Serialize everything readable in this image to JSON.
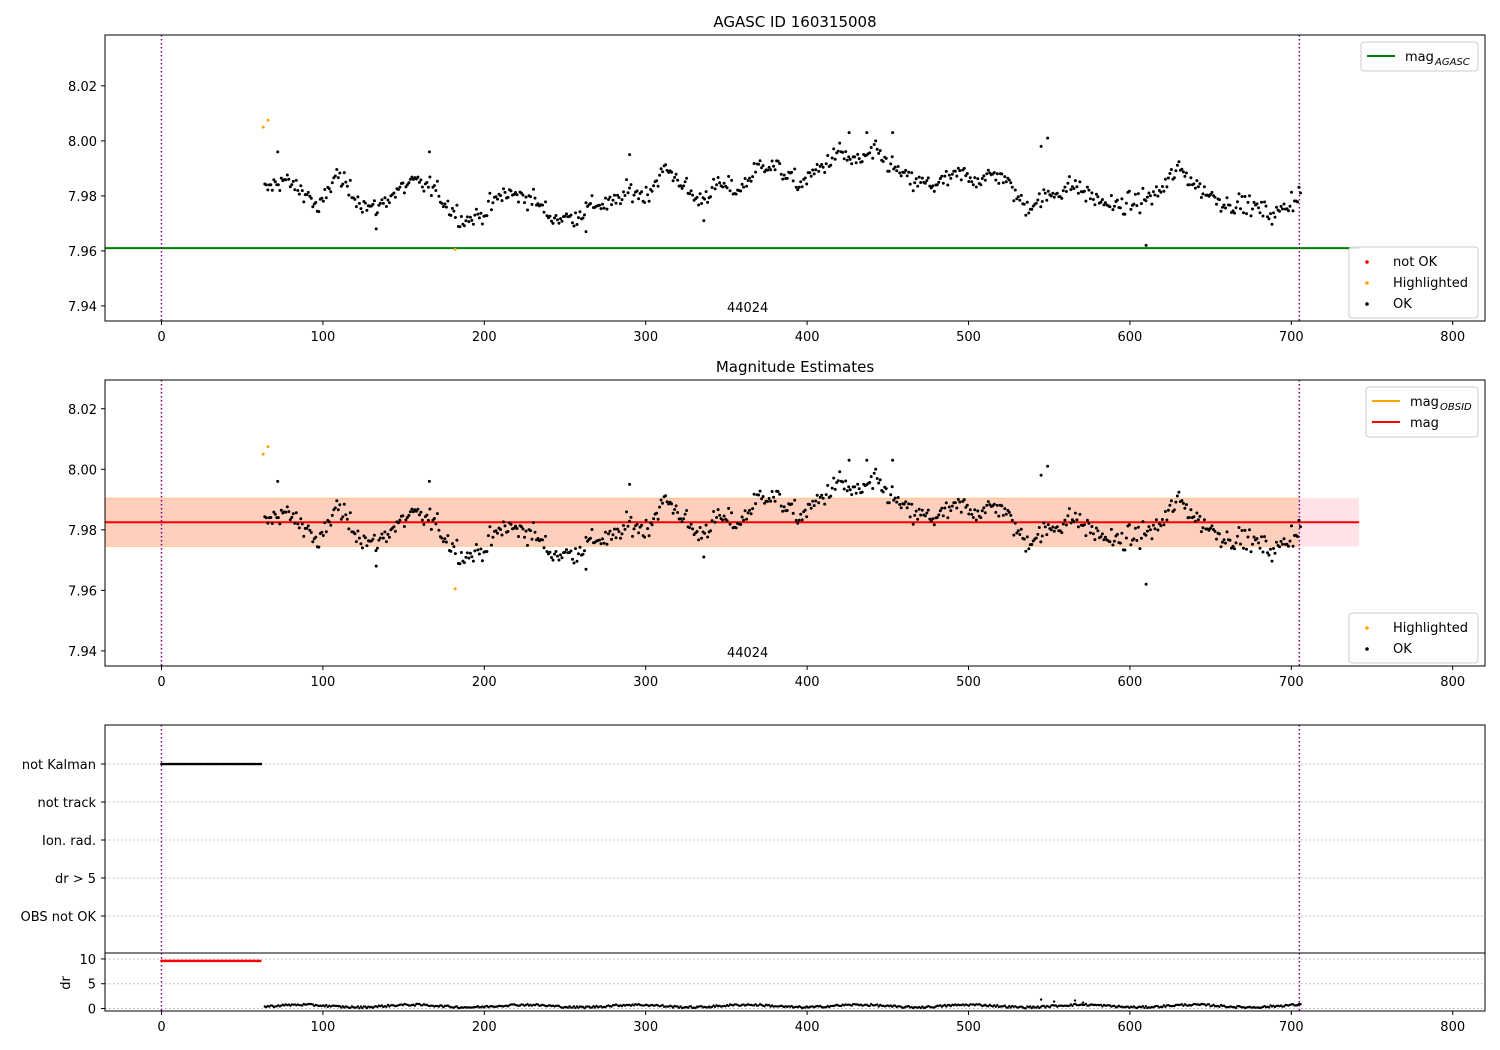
{
  "figure": {
    "annotation_text": "44024"
  },
  "chart_data": [
    {
      "type": "scatter",
      "title": "AGASC ID 160315008",
      "xlabel": "",
      "ylabel": "",
      "xlim": [
        -35,
        820
      ],
      "ylim": [
        7.9345,
        8.0385
      ],
      "x_ticks": [
        0,
        100,
        200,
        300,
        400,
        500,
        600,
        700,
        800
      ],
      "y_ticks": [
        7.94,
        7.96,
        7.98,
        8.0,
        8.02
      ],
      "y_tick_labels": [
        "7.94",
        "7.96",
        "7.98",
        "8.00",
        "8.02"
      ],
      "vlines": [
        0,
        705
      ],
      "hlines": [
        {
          "name": "mag_AGASC",
          "value": 7.961,
          "x_range": [
            -35,
            742
          ],
          "color": "#008000"
        }
      ],
      "annotation": {
        "text": "44024",
        "x": 352,
        "y": 7.9345
      },
      "legend_upper": {
        "placement": "upper right",
        "entries": [
          {
            "label": "mag",
            "sub": "AGASC",
            "color": "#008000",
            "marker": "line"
          }
        ]
      },
      "legend_lower": {
        "placement": "lower right",
        "entries": [
          {
            "label": "not OK",
            "color": "#ff0000",
            "marker": "dot"
          },
          {
            "label": "Highlighted",
            "color": "#ffa500",
            "marker": "dot"
          },
          {
            "label": "OK",
            "color": "#000000",
            "marker": "dot"
          }
        ]
      },
      "series": [
        {
          "name": "Highlighted",
          "color": "#ffa500",
          "points": [
            [
              63,
              8.005
            ],
            [
              66,
              8.0075
            ],
            [
              182,
              7.9605
            ]
          ]
        }
      ],
      "ok_series": {
        "name": "OK",
        "color": "#000000",
        "x_range": [
          64,
          706
        ],
        "step": 0.93,
        "anchors": [
          [
            64,
            7.982
          ],
          [
            75,
            7.986
          ],
          [
            92,
            7.98
          ],
          [
            97,
            7.974
          ],
          [
            108,
            7.988
          ],
          [
            115,
            7.983
          ],
          [
            125,
            7.977
          ],
          [
            132,
            7.975
          ],
          [
            142,
            7.98
          ],
          [
            155,
            7.985
          ],
          [
            168,
            7.983
          ],
          [
            178,
            7.976
          ],
          [
            188,
            7.971
          ],
          [
            198,
            7.973
          ],
          [
            212,
            7.981
          ],
          [
            230,
            7.979
          ],
          [
            242,
            7.972
          ],
          [
            255,
            7.972
          ],
          [
            268,
            7.977
          ],
          [
            280,
            7.977
          ],
          [
            290,
            7.982
          ],
          [
            300,
            7.98
          ],
          [
            312,
            7.99
          ],
          [
            322,
            7.985
          ],
          [
            332,
            7.978
          ],
          [
            345,
            7.984
          ],
          [
            358,
            7.982
          ],
          [
            372,
            7.992
          ],
          [
            382,
            7.99
          ],
          [
            395,
            7.984
          ],
          [
            408,
            7.99
          ],
          [
            420,
            7.996
          ],
          [
            430,
            7.992
          ],
          [
            442,
            7.996
          ],
          [
            452,
            7.991
          ],
          [
            465,
            7.985
          ],
          [
            480,
            7.984
          ],
          [
            495,
            7.988
          ],
          [
            505,
            7.986
          ],
          [
            520,
            7.988
          ],
          [
            535,
            7.976
          ],
          [
            550,
            7.98
          ],
          [
            565,
            7.984
          ],
          [
            578,
            7.979
          ],
          [
            592,
            7.976
          ],
          [
            605,
            7.978
          ],
          [
            618,
            7.981
          ],
          [
            630,
            7.99
          ],
          [
            645,
            7.982
          ],
          [
            660,
            7.977
          ],
          [
            672,
            7.977
          ],
          [
            690,
            7.973
          ],
          [
            706,
            7.981
          ]
        ],
        "noise": 0.0035,
        "outliers": [
          [
            72,
            7.996
          ],
          [
            166,
            7.996
          ],
          [
            290,
            7.995
          ],
          [
            426,
            8.003
          ],
          [
            437,
            8.003
          ],
          [
            453,
            8.003
          ],
          [
            545,
            7.998
          ],
          [
            549,
            8.001
          ],
          [
            610,
            7.962
          ],
          [
            133,
            7.968
          ],
          [
            263,
            7.967
          ],
          [
            336,
            7.971
          ]
        ]
      },
      "dr_series": null
    },
    {
      "type": "scatter",
      "title": "Magnitude Estimates",
      "xlabel": "",
      "ylabel": "",
      "xlim": [
        -35,
        820
      ],
      "ylim": [
        7.935,
        8.0295
      ],
      "x_ticks": [
        0,
        100,
        200,
        300,
        400,
        500,
        600,
        700,
        800
      ],
      "y_ticks": [
        7.94,
        7.96,
        7.98,
        8.0,
        8.02
      ],
      "y_tick_labels": [
        "7.94",
        "7.96",
        "7.98",
        "8.00",
        "8.02"
      ],
      "vlines": [
        0,
        705
      ],
      "hlines": [
        {
          "name": "mag",
          "value": 7.9825,
          "x_range": [
            -35,
            742
          ],
          "color": "#ff0000"
        }
      ],
      "bands": [
        {
          "name": "mag band",
          "low": 7.9745,
          "high": 7.9905,
          "x_range": [
            -35,
            742
          ],
          "color": "#ff8c69",
          "opacity": 0.28
        },
        {
          "name": "mag_OBSID band",
          "low": 7.9745,
          "high": 7.9905,
          "x_range": [
            -35,
            742
          ],
          "color": "#ffb6c1",
          "opacity": 0.35
        }
      ],
      "annotation": {
        "text": "44024",
        "x": 352,
        "y": 7.935
      },
      "legend_upper": {
        "placement": "upper right",
        "entries": [
          {
            "label": "mag",
            "sub": "OBSID",
            "color": "#ffa500",
            "marker": "line"
          },
          {
            "label": "mag",
            "sub": "",
            "color": "#ff0000",
            "marker": "line"
          }
        ]
      },
      "legend_lower": {
        "placement": "lower right",
        "entries": [
          {
            "label": "Highlighted",
            "color": "#ffa500",
            "marker": "dot"
          },
          {
            "label": "OK",
            "color": "#000000",
            "marker": "dot"
          }
        ]
      },
      "series": [
        {
          "name": "Highlighted",
          "color": "#ffa500",
          "points": [
            [
              63,
              8.005
            ],
            [
              66,
              8.0075
            ],
            [
              182,
              7.9605
            ]
          ]
        }
      ],
      "ok_series": "same-as-panel-1"
    },
    {
      "type": "scatter",
      "title": "",
      "xlabel": "",
      "ylabel": "",
      "xlim": [
        -35,
        820
      ],
      "categories": [
        "not Kalman",
        "not track",
        "Ion. rad.",
        "dr > 5",
        "OBS not OK"
      ],
      "flag_series": [
        {
          "category": "not Kalman",
          "x_range": [
            0,
            62
          ],
          "color": "#000000"
        }
      ],
      "vlines": [
        0,
        705
      ]
    },
    {
      "type": "scatter",
      "title": "",
      "xlabel": "",
      "ylabel": "dr",
      "xlim": [
        -35,
        820
      ],
      "ylim": [
        -0.5,
        11.2
      ],
      "y_ticks": [
        0,
        5,
        10
      ],
      "y_tick_labels": [
        "0",
        "5",
        "10"
      ],
      "x_ticks": [
        0,
        100,
        200,
        300,
        400,
        500,
        600,
        700,
        800
      ],
      "vlines": [
        0,
        705
      ],
      "series": [
        {
          "name": "dr > 5",
          "color": "#ff0000",
          "x_range": [
            0,
            62
          ],
          "value": 9.6
        },
        {
          "name": "dr",
          "color": "#000000",
          "x_range": [
            64,
            706
          ],
          "value": 0.5,
          "spikes": [
            [
              545,
              1.8
            ],
            [
              553,
              1.4
            ],
            [
              566,
              1.6
            ],
            [
              571,
              1.2
            ]
          ]
        }
      ]
    }
  ]
}
